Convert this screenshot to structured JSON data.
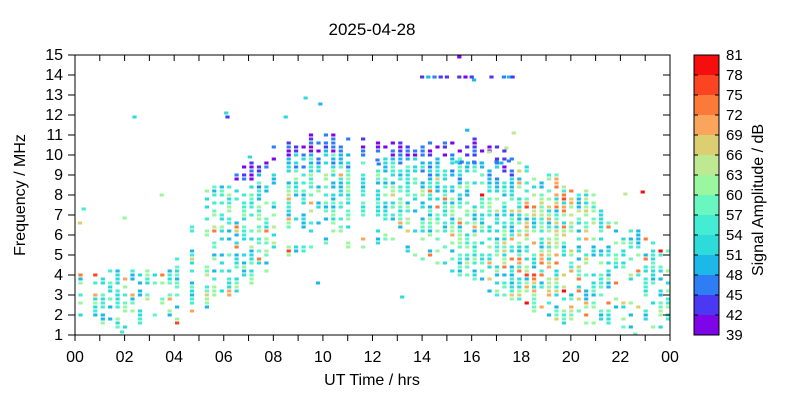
{
  "chart_data": {
    "type": "heatmap",
    "title": "2025-04-28",
    "xlabel": "UT Time / hrs",
    "ylabel": "Frequency / MHz",
    "xlim": [
      0,
      24
    ],
    "ylim": [
      1,
      15
    ],
    "x_tick_hours": [
      0,
      2,
      4,
      6,
      8,
      10,
      12,
      14,
      16,
      18,
      20,
      22,
      24
    ],
    "x_tick_labels": [
      "00",
      "02",
      "04",
      "06",
      "08",
      "10",
      "12",
      "14",
      "16",
      "18",
      "20",
      "22",
      "00"
    ],
    "x_minor_step_hr": 1,
    "y_ticks": [
      1,
      2,
      3,
      4,
      5,
      6,
      7,
      8,
      9,
      10,
      11,
      12,
      13,
      14,
      15
    ],
    "grid": false,
    "legend_position": "right-colorbar",
    "colorbar": {
      "label": "Signal Amplitude / dB",
      "min": 39,
      "max": 81,
      "step": 3,
      "tick_labels": [
        39,
        42,
        45,
        48,
        51,
        54,
        57,
        60,
        63,
        66,
        69,
        72,
        75,
        78,
        81
      ],
      "colors_low_to_high": [
        "#7d05e8",
        "#4b38f2",
        "#2e7df5",
        "#1cb8e8",
        "#2edbdb",
        "#43ecd2",
        "#69f6c0",
        "#9af7a0",
        "#bfe892",
        "#dccf72",
        "#fba55c",
        "#fb7a3a",
        "#fb4522",
        "#f60d0d"
      ]
    },
    "resolution": {
      "dt_hr": 0.3,
      "df_mhz": 0.2
    },
    "band_envelope": [
      {
        "t": 0.0,
        "fmin": 1.4,
        "fmax": 4.2,
        "density": 0.55,
        "strong": 0.1
      },
      {
        "t": 1.0,
        "fmin": 1.4,
        "fmax": 4.2,
        "density": 0.6,
        "strong": 0.12
      },
      {
        "t": 2.0,
        "fmin": 1.4,
        "fmax": 4.4,
        "density": 0.55,
        "strong": 0.1
      },
      {
        "t": 3.0,
        "fmin": 1.4,
        "fmax": 4.5,
        "density": 0.48,
        "strong": 0.08
      },
      {
        "t": 4.0,
        "fmin": 1.5,
        "fmax": 4.7,
        "density": 0.5,
        "strong": 0.08
      },
      {
        "t": 4.5,
        "fmin": 1.8,
        "fmax": 6.0,
        "density": 0.52,
        "strong": 0.08
      },
      {
        "t": 5.0,
        "fmin": 2.2,
        "fmax": 8.2,
        "density": 0.55,
        "strong": 0.08
      },
      {
        "t": 6.0,
        "fmin": 2.8,
        "fmax": 8.8,
        "density": 0.6,
        "strong": 0.1
      },
      {
        "t": 7.0,
        "fmin": 3.5,
        "fmax": 9.6,
        "density": 0.62,
        "strong": 0.08
      },
      {
        "t": 8.0,
        "fmin": 4.3,
        "fmax": 10.4,
        "density": 0.65,
        "strong": 0.08
      },
      {
        "t": 9.0,
        "fmin": 5.0,
        "fmax": 11.0,
        "density": 0.68,
        "strong": 0.08
      },
      {
        "t": 10.0,
        "fmin": 5.2,
        "fmax": 11.1,
        "density": 0.68,
        "strong": 0.06
      },
      {
        "t": 11.0,
        "fmin": 5.3,
        "fmax": 11.0,
        "density": 0.68,
        "strong": 0.06
      },
      {
        "t": 12.0,
        "fmin": 5.3,
        "fmax": 10.9,
        "density": 0.68,
        "strong": 0.06
      },
      {
        "t": 13.0,
        "fmin": 5.2,
        "fmax": 10.8,
        "density": 0.68,
        "strong": 0.06
      },
      {
        "t": 14.0,
        "fmin": 4.8,
        "fmax": 10.7,
        "density": 0.68,
        "strong": 0.06
      },
      {
        "t": 15.0,
        "fmin": 4.2,
        "fmax": 10.8,
        "density": 0.68,
        "strong": 0.06
      },
      {
        "t": 16.0,
        "fmin": 3.6,
        "fmax": 10.9,
        "density": 0.68,
        "strong": 0.08
      },
      {
        "t": 17.0,
        "fmin": 3.0,
        "fmax": 10.6,
        "density": 0.7,
        "strong": 0.15
      },
      {
        "t": 18.0,
        "fmin": 2.4,
        "fmax": 9.6,
        "density": 0.72,
        "strong": 0.3
      },
      {
        "t": 19.0,
        "fmin": 1.8,
        "fmax": 9.2,
        "density": 0.72,
        "strong": 0.35
      },
      {
        "t": 20.0,
        "fmin": 1.5,
        "fmax": 8.8,
        "density": 0.65,
        "strong": 0.3
      },
      {
        "t": 21.0,
        "fmin": 1.4,
        "fmax": 8.0,
        "density": 0.55,
        "strong": 0.22
      },
      {
        "t": 21.7,
        "fmin": 1.3,
        "fmax": 7.2,
        "density": 0.42,
        "strong": 0.15
      },
      {
        "t": 22.5,
        "fmin": 1.3,
        "fmax": 6.6,
        "density": 0.42,
        "strong": 0.12
      },
      {
        "t": 23.2,
        "fmin": 1.3,
        "fmax": 5.9,
        "density": 0.45,
        "strong": 0.12
      },
      {
        "t": 24.0,
        "fmin": 1.3,
        "fmax": 5.6,
        "density": 0.48,
        "strong": 0.12
      }
    ],
    "sporadic_points": [
      [
        0.35,
        7.3,
        54
      ],
      [
        0.2,
        6.6,
        66
      ],
      [
        2.0,
        6.85,
        60
      ],
      [
        3.5,
        8.0,
        60
      ],
      [
        2.4,
        11.9,
        51
      ],
      [
        1.9,
        1.15,
        54
      ],
      [
        6.1,
        12.1,
        51
      ],
      [
        6.15,
        11.9,
        42
      ],
      [
        7.05,
        9.9,
        51
      ],
      [
        8.5,
        11.9,
        51
      ],
      [
        9.3,
        12.85,
        51
      ],
      [
        9.9,
        12.55,
        48
      ],
      [
        12.2,
        9.75,
        45
      ],
      [
        12.25,
        9.55,
        45
      ],
      [
        14.0,
        13.9,
        42
      ],
      [
        14.25,
        13.9,
        48
      ],
      [
        14.5,
        13.9,
        45
      ],
      [
        14.75,
        13.9,
        42
      ],
      [
        15.0,
        13.9,
        42
      ],
      [
        15.5,
        13.9,
        42
      ],
      [
        15.75,
        13.9,
        40
      ],
      [
        16.0,
        13.9,
        42
      ],
      [
        16.1,
        13.75,
        48
      ],
      [
        16.8,
        13.9,
        42
      ],
      [
        17.3,
        13.9,
        45
      ],
      [
        17.5,
        13.9,
        48
      ],
      [
        17.65,
        13.9,
        42
      ],
      [
        15.5,
        14.9,
        39
      ],
      [
        15.4,
        9.65,
        51
      ],
      [
        15.6,
        9.65,
        45
      ],
      [
        15.85,
        9.6,
        48
      ],
      [
        16.1,
        9.65,
        45
      ],
      [
        16.4,
        9.6,
        48
      ],
      [
        17.0,
        9.65,
        45
      ],
      [
        17.2,
        9.6,
        48
      ],
      [
        17.5,
        9.7,
        45
      ],
      [
        16.7,
        10.15,
        63
      ],
      [
        17.4,
        10.35,
        63
      ],
      [
        17.7,
        11.1,
        63
      ],
      [
        9.8,
        3.6,
        48
      ],
      [
        13.2,
        2.9,
        51
      ],
      [
        22.9,
        8.15,
        78
      ],
      [
        22.2,
        8.05,
        63
      ],
      [
        22.6,
        1.05,
        57
      ]
    ]
  }
}
